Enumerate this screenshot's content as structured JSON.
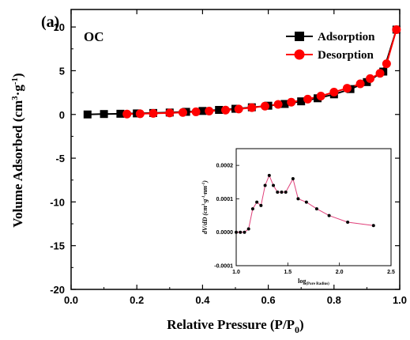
{
  "panel_label": "(a)",
  "sample_label": "OC",
  "colors": {
    "adsorption": "#000000",
    "desorption": "#ff0000",
    "inset_line": "#e0407a",
    "inset_marker": "#000000"
  },
  "axis_titles": {
    "x_main": "Relative Pressure (P/P",
    "x_sub": "0",
    "x_end": ")",
    "y_main": "Volume Adsorbed (cm",
    "y_sup1": "3",
    "y_mid": "·g",
    "y_sup2": "-1",
    "y_end": ")"
  },
  "inset_axis_titles": {
    "x_main": "log",
    "x_sub": "(Pore Radius)",
    "y_main": "dV/dD (cm",
    "y_sup1": "3",
    "y_mid": "·g",
    "y_sup2": "-1",
    "y_mid2": "·nm",
    "y_sup3": "-1",
    "y_end": ")"
  },
  "chart_data": [
    {
      "type": "line",
      "xlim": [
        0.0,
        1.0
      ],
      "ylim": [
        -20,
        12
      ],
      "x_ticks": [
        0.0,
        0.2,
        0.4,
        0.6,
        0.8,
        1.0
      ],
      "x_tick_labels": [
        "0.0",
        "0.2",
        "0.4",
        "0.6",
        "0.8",
        "1.0"
      ],
      "y_ticks": [
        -20,
        -15,
        -10,
        -5,
        0,
        5,
        10
      ],
      "y_tick_labels": [
        "-20",
        "-15",
        "-10",
        "-5",
        "0",
        "5",
        "10"
      ],
      "legend_position": "top-right",
      "series": [
        {
          "name": "Adsorption",
          "marker": "square",
          "x": [
            0.05,
            0.1,
            0.15,
            0.2,
            0.25,
            0.3,
            0.35,
            0.4,
            0.45,
            0.5,
            0.55,
            0.6,
            0.65,
            0.7,
            0.75,
            0.8,
            0.85,
            0.9,
            0.95,
            0.99
          ],
          "y": [
            0.0,
            0.05,
            0.08,
            0.12,
            0.17,
            0.22,
            0.3,
            0.4,
            0.52,
            0.65,
            0.82,
            1.0,
            1.2,
            1.5,
            1.85,
            2.3,
            2.9,
            3.7,
            4.9,
            9.7
          ]
        },
        {
          "name": "Desorption",
          "marker": "circle",
          "x": [
            0.17,
            0.21,
            0.25,
            0.3,
            0.34,
            0.38,
            0.42,
            0.47,
            0.51,
            0.55,
            0.59,
            0.63,
            0.67,
            0.72,
            0.76,
            0.8,
            0.84,
            0.88,
            0.91,
            0.94,
            0.96,
            0.99
          ],
          "y": [
            0.05,
            0.08,
            0.12,
            0.17,
            0.23,
            0.3,
            0.38,
            0.5,
            0.62,
            0.78,
            0.95,
            1.15,
            1.4,
            1.75,
            2.1,
            2.55,
            3.0,
            3.5,
            4.1,
            4.7,
            5.8,
            9.7
          ]
        }
      ]
    },
    {
      "type": "line",
      "xlim": [
        1.0,
        2.5
      ],
      "ylim": [
        -0.0001,
        0.00025
      ],
      "x_ticks": [
        1.0,
        1.5,
        2.0,
        2.5
      ],
      "x_tick_labels": [
        "1.0",
        "1.5",
        "2.0",
        "2.5"
      ],
      "y_ticks": [
        -0.0001,
        0.0,
        0.0001,
        0.0002
      ],
      "y_tick_labels": [
        "-0.0001",
        "0.0000",
        "0.0001",
        "0.0002"
      ],
      "series": [
        {
          "marker": "circle",
          "x": [
            1.0,
            1.04,
            1.08,
            1.12,
            1.16,
            1.2,
            1.24,
            1.28,
            1.32,
            1.36,
            1.4,
            1.44,
            1.48,
            1.55,
            1.6,
            1.68,
            1.78,
            1.9,
            2.08,
            2.33
          ],
          "y": [
            0.0,
            0.0,
            0.0,
            1e-05,
            7e-05,
            9e-05,
            8e-05,
            0.00014,
            0.00017,
            0.00014,
            0.00012,
            0.00012,
            0.00012,
            0.00016,
            0.0001,
            9e-05,
            7e-05,
            5e-05,
            3e-05,
            2e-05
          ]
        }
      ]
    }
  ]
}
